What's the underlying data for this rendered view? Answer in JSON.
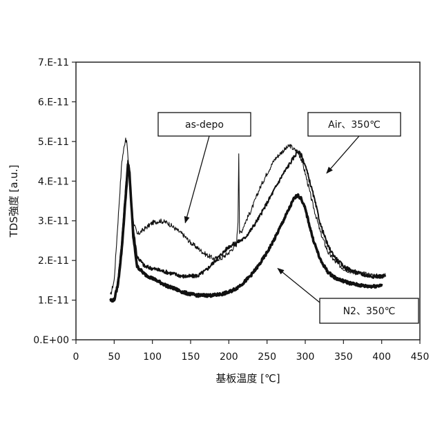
{
  "chart_data": {
    "type": "line",
    "title": "",
    "xlabel": "基板温度 [℃]",
    "ylabel": "TDS強度 [a.u.]",
    "xlim": [
      0,
      450
    ],
    "ylim": [
      0,
      7e-11
    ],
    "x_ticks": [
      0,
      50,
      100,
      150,
      200,
      250,
      300,
      350,
      400,
      450
    ],
    "y_ticks": [
      0,
      1e-11,
      2e-11,
      3e-11,
      4e-11,
      5e-11,
      6e-11,
      7e-11
    ],
    "x_tick_labels": [
      "0",
      "50",
      "100",
      "150",
      "200",
      "250",
      "300",
      "350",
      "400",
      "450"
    ],
    "y_tick_labels": [
      "0.E+00",
      "1.E-11",
      "2.E-11",
      "3.E-11",
      "4.E-11",
      "5.E-11",
      "6.E-11",
      "7.E-11"
    ],
    "grid": false,
    "legend": "callouts",
    "series": [
      {
        "name": "as-depo",
        "line_width": "thin",
        "x": [
          45,
          50,
          55,
          60,
          65,
          67,
          70,
          75,
          80,
          90,
          100,
          110,
          120,
          130,
          140,
          150,
          160,
          170,
          180,
          190,
          200,
          210,
          212,
          213,
          214,
          216,
          220,
          230,
          240,
          250,
          260,
          270,
          280,
          285,
          290,
          295,
          300,
          310,
          320,
          330,
          340,
          350,
          360,
          370,
          380,
          390,
          400,
          405
        ],
        "y": [
          1.1e-11,
          1.5e-11,
          3e-11,
          4.5e-11,
          5.1e-11,
          4.9e-11,
          4e-11,
          3e-11,
          2.65e-11,
          2.8e-11,
          2.95e-11,
          3e-11,
          2.95e-11,
          2.8e-11,
          2.65e-11,
          2.45e-11,
          2.3e-11,
          2.15e-11,
          2.05e-11,
          2.05e-11,
          2.2e-11,
          2.4e-11,
          3e-11,
          4.75e-11,
          2.7e-11,
          2.7e-11,
          2.9e-11,
          3.3e-11,
          3.8e-11,
          4.2e-11,
          4.55e-11,
          4.75e-11,
          4.9e-11,
          4.8e-11,
          4.75e-11,
          4.55e-11,
          4.2e-11,
          3.4e-11,
          2.7e-11,
          2.2e-11,
          1.95e-11,
          1.8e-11,
          1.72e-11,
          1.68e-11,
          1.65e-11,
          1.62e-11,
          1.6e-11,
          1.62e-11
        ]
      },
      {
        "name": "Air、350℃",
        "line_width": "medium",
        "x": [
          45,
          50,
          55,
          60,
          65,
          68,
          70,
          75,
          80,
          90,
          100,
          110,
          120,
          130,
          140,
          150,
          160,
          170,
          180,
          190,
          200,
          210,
          220,
          230,
          240,
          250,
          260,
          270,
          280,
          285,
          290,
          295,
          300,
          310,
          320,
          330,
          340,
          350,
          360,
          370,
          380,
          390,
          400,
          405
        ],
        "y": [
          1e-11,
          1e-11,
          1.5e-11,
          2.5e-11,
          3.8e-11,
          4.5e-11,
          4.3e-11,
          2.8e-11,
          2.1e-11,
          1.85e-11,
          1.8e-11,
          1.75e-11,
          1.7e-11,
          1.65e-11,
          1.6e-11,
          1.6e-11,
          1.62e-11,
          1.75e-11,
          1.95e-11,
          2.15e-11,
          2.35e-11,
          2.45e-11,
          2.55e-11,
          2.8e-11,
          3.1e-11,
          3.45e-11,
          3.8e-11,
          4.15e-11,
          4.45e-11,
          4.6e-11,
          4.75e-11,
          4.65e-11,
          4.4e-11,
          3.7e-11,
          2.9e-11,
          2.35e-11,
          2.05e-11,
          1.85e-11,
          1.75e-11,
          1.68e-11,
          1.62e-11,
          1.6e-11,
          1.6e-11,
          1.62e-11
        ]
      },
      {
        "name": "N2、350℃",
        "line_width": "thick",
        "x": [
          45,
          50,
          55,
          60,
          65,
          68,
          70,
          75,
          80,
          90,
          100,
          110,
          120,
          130,
          140,
          150,
          160,
          170,
          180,
          190,
          200,
          210,
          220,
          230,
          240,
          250,
          260,
          270,
          280,
          285,
          290,
          295,
          300,
          310,
          320,
          330,
          340,
          350,
          360,
          370,
          380,
          390,
          400
        ],
        "y": [
          1e-11,
          1e-11,
          1.4e-11,
          2.3e-11,
          3.6e-11,
          4.4e-11,
          4.2e-11,
          2.6e-11,
          1.85e-11,
          1.65e-11,
          1.55e-11,
          1.45e-11,
          1.35e-11,
          1.28e-11,
          1.2e-11,
          1.15e-11,
          1.12e-11,
          1.12e-11,
          1.12e-11,
          1.15e-11,
          1.2e-11,
          1.3e-11,
          1.45e-11,
          1.65e-11,
          1.9e-11,
          2.2e-11,
          2.55e-11,
          2.95e-11,
          3.35e-11,
          3.55e-11,
          3.65e-11,
          3.55e-11,
          3.3e-11,
          2.55e-11,
          2e-11,
          1.7e-11,
          1.55e-11,
          1.48e-11,
          1.42e-11,
          1.38e-11,
          1.35e-11,
          1.35e-11,
          1.38e-11
        ]
      }
    ],
    "annotations": [
      {
        "text": "as-depo",
        "series": "as-depo",
        "point": [
          143,
          2.95e-11
        ]
      },
      {
        "text": "Air、350℃",
        "series": "Air、350℃",
        "point": [
          328,
          4.2e-11
        ]
      },
      {
        "text": "N2、350℃",
        "series": "N2、350℃",
        "point": [
          264,
          1.8e-11
        ]
      }
    ]
  }
}
